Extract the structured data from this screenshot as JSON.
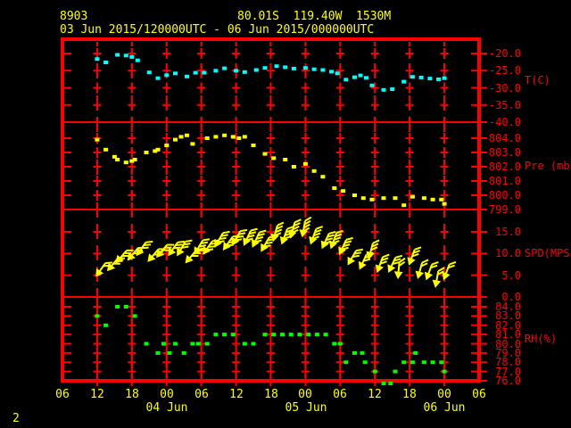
{
  "header": {
    "station_id": "8903",
    "position": "80.01S  119.40W  1530M",
    "time_range": "03 Jun 2015/120000UTC - 06 Jun 2015/000000UTC"
  },
  "page_number": "2",
  "colors": {
    "background": "#000000",
    "frame": "#ff0000",
    "axis_text": "#ff0000",
    "header_text": "#ffff00",
    "temperature": "#00ffff",
    "pressure": "#ffff00",
    "wind": "#ffff00",
    "humidity": "#00ff00"
  },
  "x_axis": {
    "hour_labels": [
      "06",
      "12",
      "18",
      "00",
      "06",
      "12",
      "18",
      "00",
      "06",
      "12",
      "18",
      "00",
      "06"
    ],
    "date_labels": [
      {
        "label": "04 Jun",
        "tick_index": 3
      },
      {
        "label": "05 Jun",
        "tick_index": 7
      },
      {
        "label": "06 Jun",
        "tick_index": 11
      }
    ],
    "hours_span": [
      -6,
      66
    ],
    "start_reference": "03 Jun 2015 12UTC"
  },
  "chart_data": [
    {
      "type": "scatter",
      "series": "temperature",
      "ylabel": "T(C)",
      "yticks": [
        -20,
        -25,
        -30,
        -35,
        -40
      ],
      "points": [
        [
          0,
          -21.6
        ],
        [
          1.5,
          -22.6
        ],
        [
          3.5,
          -20.4
        ],
        [
          5,
          -20.6
        ],
        [
          6,
          -21
        ],
        [
          7,
          -22
        ],
        [
          9,
          -25.5
        ],
        [
          10.5,
          -27.2
        ],
        [
          12,
          -26.3
        ],
        [
          13.5,
          -25.8
        ],
        [
          15.5,
          -26.7
        ],
        [
          17,
          -25.6
        ],
        [
          18.5,
          -25.6
        ],
        [
          20.5,
          -25
        ],
        [
          22,
          -24.3
        ],
        [
          24,
          -25
        ],
        [
          25.5,
          -25.4
        ],
        [
          27.5,
          -24.8
        ],
        [
          29,
          -24.2
        ],
        [
          31,
          -23.7
        ],
        [
          32.5,
          -24
        ],
        [
          34,
          -24.4
        ],
        [
          36,
          -24.2
        ],
        [
          37.5,
          -24.6
        ],
        [
          39,
          -24.8
        ],
        [
          40.5,
          -25.3
        ],
        [
          41.5,
          -25.8
        ],
        [
          43,
          -27.6
        ],
        [
          44.5,
          -26.9
        ],
        [
          45.5,
          -26.4
        ],
        [
          46.5,
          -27.1
        ],
        [
          47.5,
          -29.3
        ],
        [
          49.5,
          -30.6
        ],
        [
          51,
          -30.4
        ],
        [
          53,
          -28.2
        ],
        [
          54.5,
          -26.8
        ],
        [
          56,
          -27
        ],
        [
          57.5,
          -27.3
        ],
        [
          59,
          -27.5
        ],
        [
          60,
          -27.2
        ]
      ]
    },
    {
      "type": "scatter",
      "series": "pressure",
      "ylabel": "Pre (mb)",
      "yticks": [
        804,
        803,
        802,
        801,
        800,
        799
      ],
      "points": [
        [
          0,
          803.9
        ],
        [
          1.5,
          803.2
        ],
        [
          3,
          802.7
        ],
        [
          3.5,
          802.5
        ],
        [
          5,
          802.3
        ],
        [
          6,
          802.4
        ],
        [
          6.5,
          802.5
        ],
        [
          8.5,
          803
        ],
        [
          10,
          803.1
        ],
        [
          10.5,
          803.2
        ],
        [
          12,
          803.5
        ],
        [
          13.5,
          803.9
        ],
        [
          14.5,
          804.1
        ],
        [
          15.5,
          804.2
        ],
        [
          16.5,
          803.6
        ],
        [
          19,
          804
        ],
        [
          20.5,
          804.1
        ],
        [
          22,
          804.2
        ],
        [
          23.5,
          804.1
        ],
        [
          24.5,
          804
        ],
        [
          25.5,
          804.1
        ],
        [
          27,
          803.5
        ],
        [
          29,
          802.9
        ],
        [
          30.5,
          802.6
        ],
        [
          32.5,
          802.5
        ],
        [
          34,
          802
        ],
        [
          36,
          802.2
        ],
        [
          37.5,
          801.7
        ],
        [
          39,
          801.3
        ],
        [
          41,
          800.5
        ],
        [
          42.5,
          800.3
        ],
        [
          44.5,
          800
        ],
        [
          46,
          799.8
        ],
        [
          47.5,
          799.7
        ],
        [
          49.5,
          799.8
        ],
        [
          51.5,
          799.8
        ],
        [
          53,
          799.3
        ],
        [
          54.5,
          799.9
        ],
        [
          56.5,
          799.8
        ],
        [
          58,
          799.7
        ],
        [
          59.5,
          799.7
        ],
        [
          60,
          799.4
        ]
      ]
    },
    {
      "type": "scatter",
      "series": "wind_speed",
      "marker": "wind-barb",
      "ylabel": "SPD(MPS)",
      "yticks": [
        15,
        10,
        5,
        0
      ],
      "points": [
        [
          0,
          5.1,
          35
        ],
        [
          2,
          6.4,
          40
        ],
        [
          3.5,
          8.2,
          40
        ],
        [
          5.5,
          8.8,
          40
        ],
        [
          7,
          9.9,
          35
        ],
        [
          9,
          8.5,
          40
        ],
        [
          10.5,
          9.5,
          40
        ],
        [
          12.5,
          9.9,
          35
        ],
        [
          14,
          9.9,
          30
        ],
        [
          15.5,
          8.2,
          40
        ],
        [
          17,
          10.2,
          30
        ],
        [
          18.5,
          10.2,
          35
        ],
        [
          20.5,
          11.9,
          30
        ],
        [
          22,
          11.2,
          35
        ],
        [
          23.5,
          12.3,
          30
        ],
        [
          25.5,
          12.3,
          25
        ],
        [
          27,
          11.9,
          25
        ],
        [
          28.5,
          10.9,
          30
        ],
        [
          30.5,
          13.3,
          15
        ],
        [
          32,
          12.6,
          20
        ],
        [
          33.5,
          14,
          15
        ],
        [
          35.5,
          14.3,
          10
        ],
        [
          37,
          12.6,
          20
        ],
        [
          39,
          11.6,
          25
        ],
        [
          40.5,
          11.6,
          20
        ],
        [
          42,
          10.2,
          25
        ],
        [
          43.5,
          7.8,
          30
        ],
        [
          45.5,
          6.8,
          25
        ],
        [
          47,
          9.2,
          15
        ],
        [
          48.5,
          6.1,
          20
        ],
        [
          50.5,
          6.1,
          25
        ],
        [
          52,
          4.7,
          5
        ],
        [
          54,
          7.8,
          20
        ],
        [
          55.5,
          4.7,
          15
        ],
        [
          57,
          4.4,
          20
        ],
        [
          58.5,
          2.7,
          10
        ],
        [
          60,
          4.4,
          20
        ]
      ]
    },
    {
      "type": "scatter",
      "series": "relative_humidity",
      "ylabel": "RH(%)",
      "yticks": [
        84,
        83,
        82,
        81,
        80,
        79,
        78,
        77,
        76
      ],
      "points": [
        [
          0,
          83
        ],
        [
          1.5,
          82
        ],
        [
          3.5,
          84
        ],
        [
          5,
          84
        ],
        [
          6.5,
          83
        ],
        [
          8.5,
          80
        ],
        [
          10.5,
          79
        ],
        [
          11.5,
          80
        ],
        [
          12.5,
          79
        ],
        [
          13.5,
          80
        ],
        [
          15,
          79
        ],
        [
          16.5,
          80
        ],
        [
          17.5,
          80
        ],
        [
          19,
          80
        ],
        [
          20.5,
          81
        ],
        [
          22,
          81
        ],
        [
          23.5,
          81
        ],
        [
          25.5,
          80
        ],
        [
          27,
          80
        ],
        [
          29,
          81
        ],
        [
          30.5,
          81
        ],
        [
          32,
          81
        ],
        [
          33.5,
          81
        ],
        [
          35,
          81
        ],
        [
          36.5,
          81
        ],
        [
          38,
          81
        ],
        [
          39.5,
          81
        ],
        [
          41,
          80
        ],
        [
          42,
          80
        ],
        [
          43,
          78
        ],
        [
          44.5,
          79
        ],
        [
          45.8,
          79
        ],
        [
          46.3,
          78
        ],
        [
          48,
          77
        ],
        [
          49.5,
          75.7
        ],
        [
          50.7,
          75.7
        ],
        [
          51.5,
          77
        ],
        [
          53,
          78
        ],
        [
          54.5,
          78
        ],
        [
          55,
          79
        ],
        [
          56.5,
          78
        ],
        [
          58,
          78
        ],
        [
          59.5,
          78
        ],
        [
          60,
          77
        ]
      ]
    }
  ]
}
